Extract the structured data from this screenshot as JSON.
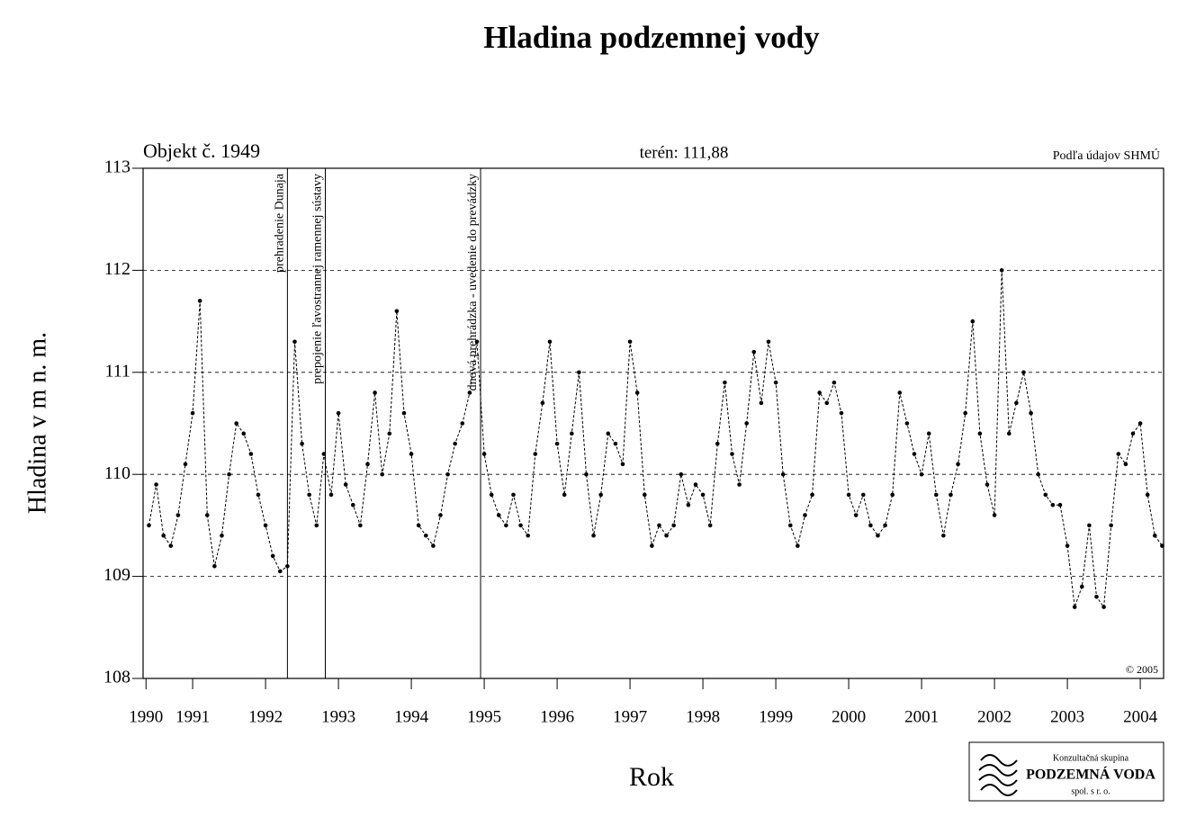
{
  "chart_data": {
    "type": "line",
    "title": "Hladina podzemnej vody",
    "object_label": "Objekt č. 1949",
    "terrain_label": "terén: 111,88",
    "source": "Podľa údajov SHMÚ",
    "copyright": "© 2005",
    "xlabel": "Rok",
    "ylabel": "Hladina v m n. m.",
    "xlim": [
      1990.82,
      2004.82
    ],
    "ylim": [
      108,
      113
    ],
    "yticks": [
      108,
      109,
      110,
      111,
      112,
      113
    ],
    "xticks": [
      {
        "value": 1990.86,
        "label": "1990"
      },
      {
        "value": 1991.5,
        "label": "1991"
      },
      {
        "value": 1992.5,
        "label": "1992"
      },
      {
        "value": 1993.5,
        "label": "1993"
      },
      {
        "value": 1994.5,
        "label": "1994"
      },
      {
        "value": 1995.5,
        "label": "1995"
      },
      {
        "value": 1996.5,
        "label": "1996"
      },
      {
        "value": 1997.5,
        "label": "1997"
      },
      {
        "value": 1998.5,
        "label": "1998"
      },
      {
        "value": 1999.5,
        "label": "1999"
      },
      {
        "value": 2000.5,
        "label": "2000"
      },
      {
        "value": 2001.5,
        "label": "2001"
      },
      {
        "value": 2002.5,
        "label": "2002"
      },
      {
        "value": 2003.5,
        "label": "2003"
      },
      {
        "value": 2004.5,
        "label": "2004"
      }
    ],
    "grid": true,
    "events": [
      {
        "x": 1992.8,
        "label": "prehradenie Dunaja"
      },
      {
        "x": 1993.32,
        "label": "prepojenie ľavostrannej ramennej sústavy"
      },
      {
        "x": 1995.45,
        "label": "dnová prehrádzka - uvedenie do prevádzky"
      }
    ],
    "series": [
      {
        "name": "Hladina",
        "color": "#000000",
        "x": [
          1990.9,
          1991.0,
          1991.1,
          1991.2,
          1991.3,
          1991.4,
          1991.5,
          1991.6,
          1991.7,
          1991.8,
          1991.9,
          1992.0,
          1992.1,
          1992.2,
          1992.3,
          1992.4,
          1992.5,
          1992.6,
          1992.7,
          1992.8,
          1992.9,
          1993.0,
          1993.1,
          1993.2,
          1993.3,
          1993.4,
          1993.5,
          1993.6,
          1993.7,
          1993.8,
          1993.9,
          1994.0,
          1994.1,
          1994.2,
          1994.3,
          1994.4,
          1994.5,
          1994.6,
          1994.7,
          1994.8,
          1994.9,
          1995.0,
          1995.1,
          1995.2,
          1995.3,
          1995.4,
          1995.5,
          1995.6,
          1995.7,
          1995.8,
          1995.9,
          1996.0,
          1996.1,
          1996.2,
          1996.3,
          1996.4,
          1996.5,
          1996.6,
          1996.7,
          1996.8,
          1996.9,
          1997.0,
          1997.1,
          1997.2,
          1997.3,
          1997.4,
          1997.5,
          1997.6,
          1997.7,
          1997.8,
          1997.9,
          1998.0,
          1998.1,
          1998.2,
          1998.3,
          1998.4,
          1998.5,
          1998.6,
          1998.7,
          1998.8,
          1998.9,
          1999.0,
          1999.1,
          1999.2,
          1999.3,
          1999.4,
          1999.5,
          1999.6,
          1999.7,
          1999.8,
          1999.9,
          2000.0,
          2000.1,
          2000.2,
          2000.3,
          2000.4,
          2000.5,
          2000.6,
          2000.7,
          2000.8,
          2000.9,
          2001.0,
          2001.1,
          2001.2,
          2001.3,
          2001.4,
          2001.5,
          2001.6,
          2001.7,
          2001.8,
          2001.9,
          2002.0,
          2002.1,
          2002.2,
          2002.3,
          2002.4,
          2002.5,
          2002.6,
          2002.7,
          2002.8,
          2002.9,
          2003.0,
          2003.1,
          2003.2,
          2003.3,
          2003.4,
          2003.5,
          2003.6,
          2003.7,
          2003.8,
          2003.9,
          2004.0,
          2004.1,
          2004.2,
          2004.3,
          2004.4,
          2004.5,
          2004.6,
          2004.7,
          2004.8
        ],
        "values": [
          109.5,
          109.9,
          109.4,
          109.3,
          109.6,
          110.1,
          110.6,
          111.7,
          109.6,
          109.1,
          109.4,
          110.0,
          110.5,
          110.4,
          110.2,
          109.8,
          109.5,
          109.2,
          109.05,
          109.1,
          111.3,
          110.3,
          109.8,
          109.5,
          110.2,
          109.8,
          110.6,
          109.9,
          109.7,
          109.5,
          110.1,
          110.8,
          110.0,
          110.4,
          111.6,
          110.6,
          110.2,
          109.5,
          109.4,
          109.3,
          109.6,
          110.0,
          110.3,
          110.5,
          110.8,
          111.3,
          110.2,
          109.8,
          109.6,
          109.5,
          109.8,
          109.5,
          109.4,
          110.2,
          110.7,
          111.3,
          110.3,
          109.8,
          110.4,
          111.0,
          110.0,
          109.4,
          109.8,
          110.4,
          110.3,
          110.1,
          111.3,
          110.8,
          109.8,
          109.3,
          109.5,
          109.4,
          109.5,
          110.0,
          109.7,
          109.9,
          109.8,
          109.5,
          110.3,
          110.9,
          110.2,
          109.9,
          110.5,
          111.2,
          110.7,
          111.3,
          110.9,
          110.0,
          109.5,
          109.3,
          109.6,
          109.8,
          110.8,
          110.7,
          110.9,
          110.6,
          109.8,
          109.6,
          109.8,
          109.5,
          109.4,
          109.5,
          109.8,
          110.8,
          110.5,
          110.2,
          110.0,
          110.4,
          109.8,
          109.4,
          109.8,
          110.1,
          110.6,
          111.5,
          110.4,
          109.9,
          109.6,
          112.0,
          110.4,
          110.7,
          111.0,
          110.6,
          110.0,
          109.8,
          109.7,
          109.7,
          109.3,
          108.7,
          108.9,
          109.5,
          108.8,
          108.7,
          109.5,
          110.2,
          110.1,
          110.4,
          110.5,
          109.8,
          109.4,
          109.3
        ]
      }
    ],
    "logo": {
      "line1": "Konzultačná skupina",
      "line2": "PODZEMNÁ VODA",
      "line3": "spol. s r. o."
    }
  }
}
